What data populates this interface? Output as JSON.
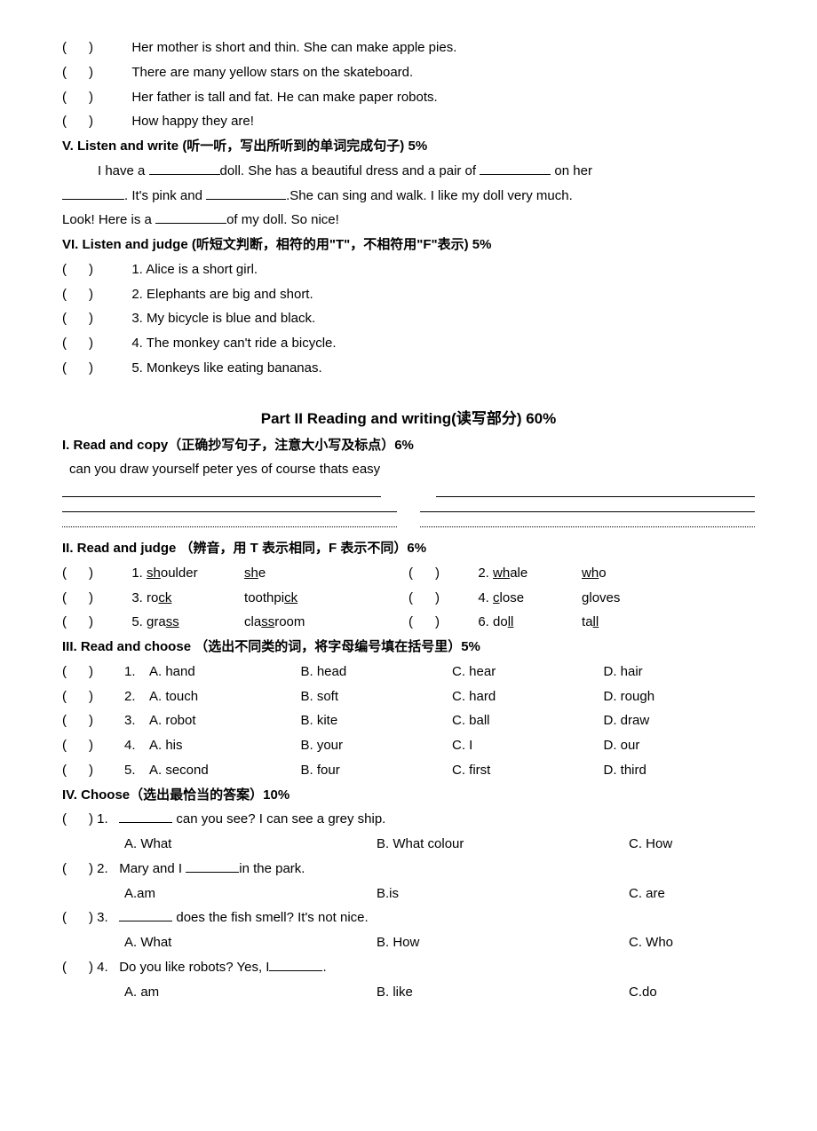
{
  "tf_lines": [
    "Her mother is short and thin. She can make apple pies.",
    "There are many yellow stars on the skateboard.",
    "Her father is tall and fat. He can make paper robots.",
    "How happy they are!"
  ],
  "section_v_title": "V. Listen and write (听一听，写出所听到的单词完成句子) 5%",
  "section_v_body": {
    "p1a": "I have a ",
    "p1b": "doll. She has a beautiful dress and a pair of ",
    "p1c": " on her",
    "p2a": ". It's pink and ",
    "p2b": ".She can sing and walk.   I like my doll very much.",
    "p3a": "Look!   Here is a ",
    "p3b": "of my doll. So nice!"
  },
  "section_vi_title": "VI. Listen and judge (听短文判断，相符的用\"T\"，不相符用\"F\"表示) 5%",
  "section_vi_items": [
    "1. Alice is a short girl.",
    "2. Elephants are big and short.",
    "3. My bicycle is blue and black.",
    "4. The monkey can't ride a bicycle.",
    "5. Monkeys like eating bananas."
  ],
  "part2_title": "Part II    Reading and writing(读写部分) 60%",
  "p2_s1_title": "I. Read and copy（正确抄写句子，注意大小写及标点）6%",
  "p2_s1_sentence": "can you draw yourself peter     yes of course     thats easy",
  "p2_s2_title": "II. Read and judge （辨音，用 T 表示相同，F 表示不同）6%",
  "p2_s2_pairs": [
    {
      "n": "1.",
      "a_pre": "",
      "a_u": "sh",
      "a_post": "oulder",
      "b_pre": "",
      "b_u": "sh",
      "b_post": "e",
      "n2": "2.",
      "c_pre": "",
      "c_u": "wh",
      "c_post": "ale",
      "d_pre": "",
      "d_u": "wh",
      "d_post": "o"
    },
    {
      "n": "3.",
      "a_pre": "ro",
      "a_u": "ck",
      "a_post": "",
      "b_pre": "toothpi",
      "b_u": "ck",
      "b_post": "",
      "n2": "4.",
      "c_pre": "",
      "c_u": "c",
      "c_post": "lose",
      "d_pre": "",
      "d_u": "g",
      "d_post": "loves"
    },
    {
      "n": "5.",
      "a_pre": "gra",
      "a_u": "ss",
      "a_post": "",
      "b_pre": "cla",
      "b_u": "ss",
      "b_post": "room",
      "n2": "6.",
      "c_pre": "do",
      "c_u": "ll",
      "c_post": "",
      "d_pre": "ta",
      "d_u": "ll",
      "d_post": ""
    }
  ],
  "p2_s3_title": "III. Read and choose （选出不同类的词，将字母编号填在括号里）5%",
  "p2_s3_items": [
    {
      "n": "1.",
      "a": "A. hand",
      "b": "B. head",
      "c": "C. hear",
      "d": "D. hair"
    },
    {
      "n": "2.",
      "a": "A. touch",
      "b": "B. soft",
      "c": "C. hard",
      "d": "D. rough"
    },
    {
      "n": "3.",
      "a": "A. robot",
      "b": "B. kite",
      "c": "C. ball",
      "d": "D. draw"
    },
    {
      "n": "4.",
      "a": "A. his",
      "b": "B. your",
      "c": "C. I",
      "d": "D. our"
    },
    {
      "n": "5.",
      "a": "A. second",
      "b": "B. four",
      "c": "C. first",
      "d": "D. third"
    }
  ],
  "p2_s4_title": "IV. Choose（选出最恰当的答案）10%",
  "p2_s4_items": [
    {
      "n": "1.",
      "q_pre": "",
      "q_blank": true,
      "q_post": " can you see? I can see a grey ship.",
      "a": "A. What",
      "b": "B. What colour",
      "c": "C. How"
    },
    {
      "n": "2.",
      "q_pre": "Mary and I ",
      "q_blank": true,
      "q_post": "in the park.",
      "a": "A.am",
      "b": "B.is",
      "c": "C. are"
    },
    {
      "n": "3.",
      "q_pre": "",
      "q_blank": true,
      "q_post": " does the fish smell?    It's not nice.",
      "a": "A. What",
      "b": "B.   How",
      "c": "C. Who"
    },
    {
      "n": "4.",
      "q_pre": "Do you like robots? Yes, I",
      "q_blank": true,
      "q_post": ".",
      "a": "A. am",
      "b": "B. like",
      "c": "C.do"
    }
  ],
  "paren_open": "(",
  "paren_close": ")"
}
